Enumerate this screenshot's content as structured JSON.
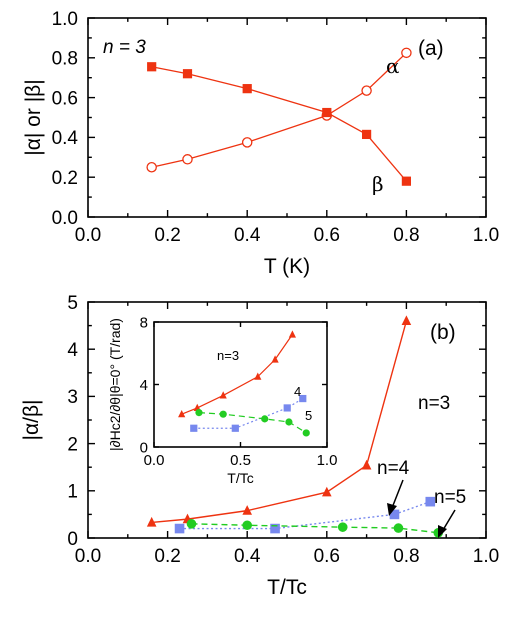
{
  "colors": {
    "red": "#ee3311",
    "blue": "#7788ee",
    "green": "#22cc22",
    "axis": "#000000"
  },
  "chart_data": [
    {
      "panel": "(a)",
      "type": "line",
      "xlabel": "T (K)",
      "ylabel": "|α| or |β|",
      "xlim": [
        0.0,
        1.0
      ],
      "ylim": [
        0.0,
        1.0
      ],
      "xticks": [
        "0.0",
        "0.2",
        "0.4",
        "0.6",
        "0.8",
        "1.0"
      ],
      "yticks": [
        "0.0",
        "0.2",
        "0.4",
        "0.6",
        "0.8",
        "1.0"
      ],
      "annotation_n": "n = 3",
      "series": [
        {
          "name": "α",
          "marker": "open-circle",
          "color": "#ee3311",
          "x": [
            0.16,
            0.25,
            0.4,
            0.6,
            0.7,
            0.8
          ],
          "y": [
            0.25,
            0.29,
            0.375,
            0.51,
            0.635,
            0.825
          ]
        },
        {
          "name": "β",
          "marker": "filled-square",
          "color": "#ee3311",
          "x": [
            0.16,
            0.25,
            0.4,
            0.6,
            0.7,
            0.8
          ],
          "y": [
            0.755,
            0.72,
            0.645,
            0.525,
            0.415,
            0.18
          ]
        }
      ]
    },
    {
      "panel": "(b)",
      "type": "line",
      "xlabel": "T/Tc",
      "ylabel": "|α/β|",
      "xlim": [
        0.0,
        1.0
      ],
      "ylim": [
        0,
        5
      ],
      "xticks": [
        "0.0",
        "0.2",
        "0.4",
        "0.6",
        "0.8",
        "1.0"
      ],
      "yticks": [
        "0",
        "1",
        "2",
        "3",
        "4",
        "5"
      ],
      "series": [
        {
          "name": "n=3",
          "marker": "filled-triangle",
          "color": "#ee3311",
          "style": "solid",
          "x": [
            0.16,
            0.25,
            0.4,
            0.6,
            0.7,
            0.8
          ],
          "y": [
            0.33,
            0.4,
            0.58,
            0.97,
            1.54,
            4.6
          ]
        },
        {
          "name": "n=4",
          "marker": "filled-square",
          "color": "#7788ee",
          "style": "dotted",
          "x": [
            0.23,
            0.47,
            0.77,
            0.86
          ],
          "y": [
            0.2,
            0.2,
            0.5,
            0.77
          ]
        },
        {
          "name": "n=5",
          "marker": "filled-circle",
          "color": "#22cc22",
          "style": "dashed",
          "x": [
            0.26,
            0.4,
            0.64,
            0.78,
            0.88
          ],
          "y": [
            0.3,
            0.27,
            0.23,
            0.21,
            0.11
          ]
        }
      ]
    },
    {
      "panel": "(b) inset",
      "type": "line",
      "xlabel": "T/Tc",
      "ylabel": "|∂Hc2/∂θ|θ=0° (T/rad)",
      "xlim": [
        0.0,
        1.0
      ],
      "ylim": [
        0,
        8
      ],
      "xticks": [
        "0.0",
        "0.5",
        "1.0"
      ],
      "yticks": [
        "0",
        "4",
        "8"
      ],
      "series": [
        {
          "name": "n=3",
          "marker": "filled-triangle",
          "color": "#ee3311",
          "style": "solid",
          "x": [
            0.16,
            0.25,
            0.4,
            0.6,
            0.7,
            0.8
          ],
          "y": [
            2.1,
            2.5,
            3.3,
            4.5,
            5.6,
            7.2
          ]
        },
        {
          "name": "4",
          "marker": "filled-square",
          "color": "#7788ee",
          "style": "dotted",
          "x": [
            0.23,
            0.47,
            0.77,
            0.86
          ],
          "y": [
            1.2,
            1.2,
            2.5,
            3.1
          ]
        },
        {
          "name": "5",
          "marker": "filled-circle",
          "color": "#22cc22",
          "style": "dashed",
          "x": [
            0.26,
            0.4,
            0.64,
            0.78,
            0.88
          ],
          "y": [
            2.2,
            2.1,
            1.8,
            1.6,
            0.9
          ]
        }
      ]
    }
  ],
  "labels": {
    "a_panel": "(a)",
    "a_n": "n = 3",
    "a_alpha": "α",
    "a_beta": "β",
    "b_panel": "(b)",
    "b_n3": "n=3",
    "b_n4": "n=4",
    "b_n5": "n=5",
    "inset_n3": "n=3",
    "inset_4": "4",
    "inset_5": "5"
  }
}
